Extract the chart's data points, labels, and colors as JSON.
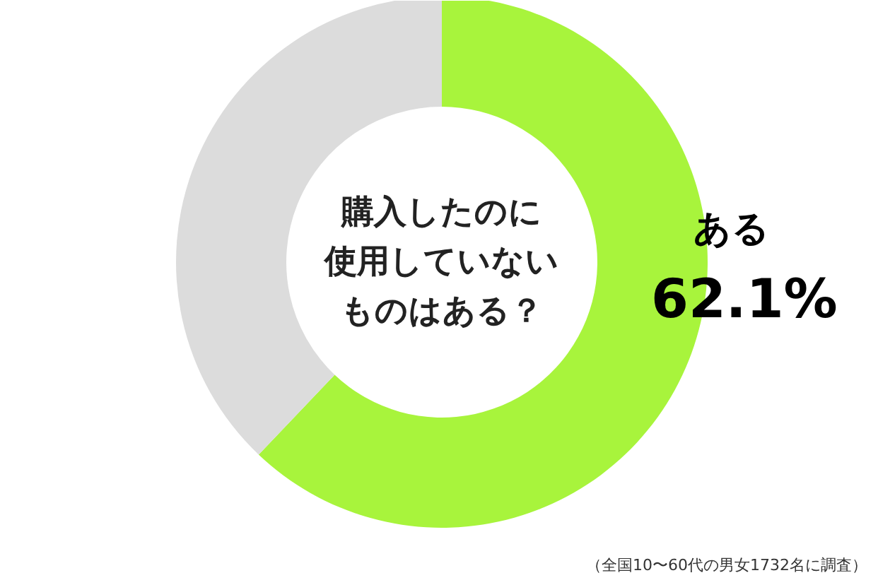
{
  "chart_data": {
    "type": "donut",
    "title": "購入したのに使用していないものはある？",
    "categories": [
      "ある",
      null
    ],
    "values": [
      62.1,
      37.9
    ],
    "colors": [
      "#a8f43c",
      "#dcdcdc"
    ],
    "value_labels": [
      "62.1%",
      null
    ],
    "annotations": [
      "（全国10〜60代の男女1732名に調査）"
    ]
  }
}
